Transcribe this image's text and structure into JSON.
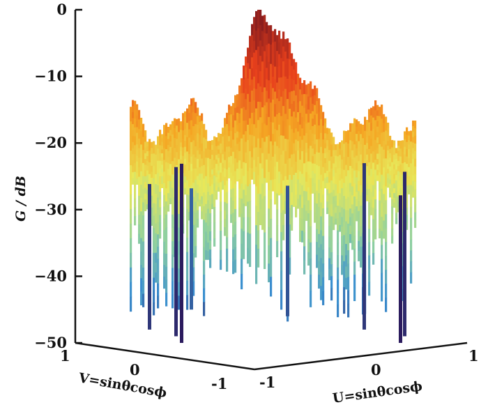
{
  "chart_data": {
    "type": "surface3d",
    "title": "",
    "zlabel": "G / dB",
    "xlabel": "U=sinθcosϕ",
    "ylabel": "V=sinθcosϕ",
    "zlim": [
      -50,
      0
    ],
    "xlim": [
      -1,
      1
    ],
    "ylim": [
      -1,
      1
    ],
    "z_ticks": [
      "0",
      "-10",
      "-20",
      "-30",
      "-40",
      "-50"
    ],
    "u_ticks": [
      "-1",
      "0",
      "1"
    ],
    "v_ticks": [
      "1",
      "0",
      "-1"
    ],
    "main_lobe_peak_db": 0,
    "sidelobe_level_db": -17,
    "colormap": [
      "#2b1b5e",
      "#3a8fd0",
      "#8fd0a0",
      "#e8e85a",
      "#f5a623",
      "#e8401c",
      "#8b1e1e"
    ],
    "grid": false
  }
}
